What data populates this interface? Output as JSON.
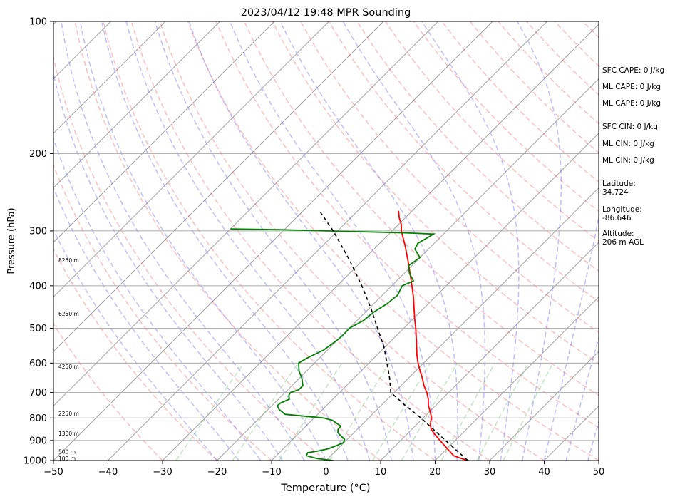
{
  "chart_data": {
    "type": "line",
    "title": "2023/04/12 19:48 MPR Sounding",
    "xlabel": "Temperature (°C)",
    "ylabel": "Pressure (hPa)",
    "xlim": [
      -50,
      50
    ],
    "ylim": [
      1000,
      100
    ],
    "y_scale": "log",
    "x_ticks": [
      "−50",
      "−40",
      "−30",
      "−20",
      "−10",
      "0",
      "10",
      "20",
      "30",
      "40",
      "50"
    ],
    "y_ticks": [
      "100",
      "200",
      "300",
      "400",
      "500",
      "600",
      "700",
      "800",
      "900",
      "1000"
    ],
    "grid": true,
    "height_labels": [
      {
        "text": "100 m",
        "pressure": 988
      },
      {
        "text": "500 m",
        "pressure": 955
      },
      {
        "text": "1300 m",
        "pressure": 868
      },
      {
        "text": "2250 m",
        "pressure": 782
      },
      {
        "text": "4250 m",
        "pressure": 610
      },
      {
        "text": "6250 m",
        "pressure": 463
      },
      {
        "text": "8250 m",
        "pressure": 350
      }
    ],
    "series": [
      {
        "color": "#ff0000",
        "pressure": [
          1000,
          990,
          975,
          950,
          925,
          900,
          870,
          850,
          840,
          825,
          800,
          775,
          750,
          725,
          700,
          675,
          650,
          625,
          600,
          575,
          550,
          525,
          500,
          475,
          450,
          425,
          400,
          375,
          350,
          325,
          300,
          290,
          280,
          270
        ],
        "values": [
          26.1,
          24.5,
          22.5,
          20.8,
          19.0,
          17.2,
          15.0,
          13.6,
          13.1,
          12.4,
          11.5,
          10.2,
          8.7,
          7.5,
          6.0,
          4.2,
          2.6,
          0.8,
          -1.0,
          -2.7,
          -4.3,
          -6.0,
          -7.8,
          -9.8,
          -11.8,
          -13.9,
          -16.3,
          -18.9,
          -21.7,
          -24.8,
          -28.3,
          -29.5,
          -31.1,
          -32.5
        ]
      },
      {
        "color": "#008000",
        "pressure": [
          1000,
          990,
          975,
          960,
          950,
          940,
          925,
          910,
          895,
          880,
          865,
          850,
          835,
          810,
          800,
          785,
          765,
          750,
          740,
          725,
          710,
          700,
          690,
          675,
          650,
          625,
          600,
          585,
          560,
          530,
          515,
          500,
          480,
          460,
          440,
          420,
          400,
          390,
          375,
          360,
          345,
          330,
          320,
          305,
          303,
          300,
          298,
          297
        ],
        "values": [
          1.3,
          -2.0,
          -4.5,
          -4.8,
          -3.0,
          -1.7,
          -0.8,
          -0.1,
          -0.5,
          -1.7,
          -2.9,
          -3.5,
          -3.6,
          -6.2,
          -8.3,
          -16.0,
          -18.0,
          -19.0,
          -18.9,
          -18.0,
          -18.8,
          -19.0,
          -18.0,
          -18.0,
          -19.5,
          -21.4,
          -22.9,
          -22.3,
          -20.7,
          -20.0,
          -19.9,
          -20.0,
          -18.8,
          -18.5,
          -17.6,
          -17.2,
          -18.1,
          -16.9,
          -19.0,
          -20.6,
          -20.0,
          -22.5,
          -23.0,
          -21.8,
          -27.2,
          -42.0,
          -51.0,
          -60.0
        ]
      },
      {
        "color": "#000000",
        "pressure": [
          1000,
          900,
          800,
          750,
          700,
          650,
          600,
          550,
          500,
          450,
          400,
          350,
          300,
          270
        ],
        "values": [
          26.0,
          18.2,
          9.6,
          4.5,
          -0.6,
          -3.4,
          -6.7,
          -10.3,
          -14.8,
          -19.7,
          -25.5,
          -32.4,
          -40.8,
          -47.0
        ]
      }
    ]
  },
  "stats": [
    {
      "label": "SFC CAPE: 0 J/kg"
    },
    {
      "label": "ML CAPE: 0 J/kg"
    },
    {
      "label": "ML CAPE: 0 J/kg"
    },
    {
      "label": "SFC CIN: 0 J/kg"
    },
    {
      "label": "ML CIN: 0 J/kg"
    },
    {
      "label": "ML CIN: 0 J/kg"
    },
    {
      "label": "Latitude:",
      "value": "34.724"
    },
    {
      "label": "Longitude:",
      "value": "-86.646"
    },
    {
      "label": "Altitude:",
      "value": "206 m AGL"
    }
  ]
}
